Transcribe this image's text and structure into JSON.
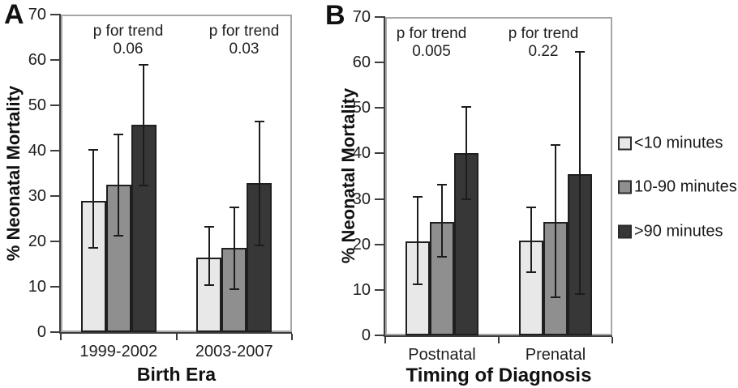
{
  "figure": {
    "description": "Two-panel bar chart of neonatal mortality with 95% confidence interval error bars"
  },
  "chart_data": [
    {
      "type": "bar",
      "panel_label": "A",
      "xlabel": "Birth Era",
      "ylabel": "% Neonatal Mortality",
      "ylim": [
        0,
        70
      ],
      "yticks": [
        0,
        10,
        20,
        30,
        40,
        50,
        60,
        70
      ],
      "grid": false,
      "categories": [
        "1999-2002",
        "2003-2007"
      ],
      "series": [
        {
          "name": "<10 minutes",
          "color": "#e8e8e8",
          "values": [
            29.0,
            16.5
          ],
          "error_low": [
            18.5,
            10.4
          ],
          "error_high": [
            40.1,
            23.2
          ]
        },
        {
          "name": "10-90 minutes",
          "color": "#8f8f8f",
          "values": [
            32.5,
            18.5
          ],
          "error_low": [
            21.3,
            9.4
          ],
          "error_high": [
            43.6,
            27.5
          ]
        },
        {
          "name": ">90 minutes",
          "color": "#373737",
          "values": [
            45.8,
            32.8
          ],
          "error_low": [
            32.3,
            19.1
          ],
          "error_high": [
            59.0,
            46.5
          ]
        }
      ],
      "annotations": [
        {
          "label": "p for trend",
          "value": "0.06",
          "category": "1999-2002"
        },
        {
          "label": "p for trend",
          "value": "0.03",
          "category": "2003-2007"
        }
      ]
    },
    {
      "type": "bar",
      "panel_label": "B",
      "xlabel": "Timing of Diagnosis",
      "ylabel": "% Neonatal Mortality",
      "ylim": [
        0,
        70
      ],
      "yticks": [
        0,
        10,
        20,
        30,
        40,
        50,
        60,
        70
      ],
      "grid": false,
      "categories": [
        "Postnatal",
        "Prenatal"
      ],
      "series": [
        {
          "name": "<10 minutes",
          "color": "#e8e8e8",
          "values": [
            20.6,
            20.9
          ],
          "error_low": [
            11.2,
            13.9
          ],
          "error_high": [
            30.4,
            28.1
          ]
        },
        {
          "name": "10-90 minutes",
          "color": "#8f8f8f",
          "values": [
            25.0,
            24.9
          ],
          "error_low": [
            17.2,
            8.3
          ],
          "error_high": [
            33.1,
            41.8
          ]
        },
        {
          "name": ">90 minutes",
          "color": "#373737",
          "values": [
            40.0,
            35.4
          ],
          "error_low": [
            29.9,
            9.1
          ],
          "error_high": [
            50.3,
            62.3
          ]
        }
      ],
      "annotations": [
        {
          "label": "p for trend",
          "value": "0.005",
          "category": "Postnatal"
        },
        {
          "label": "p for trend",
          "value": "0.22",
          "category": "Prenatal"
        }
      ]
    }
  ],
  "legend": {
    "position": "right",
    "items": [
      {
        "label": "<10 minutes",
        "color": "#e8e8e8"
      },
      {
        "label": "10-90 minutes",
        "color": "#8f8f8f"
      },
      {
        "label": ">90 minutes",
        "color": "#373737"
      }
    ]
  }
}
